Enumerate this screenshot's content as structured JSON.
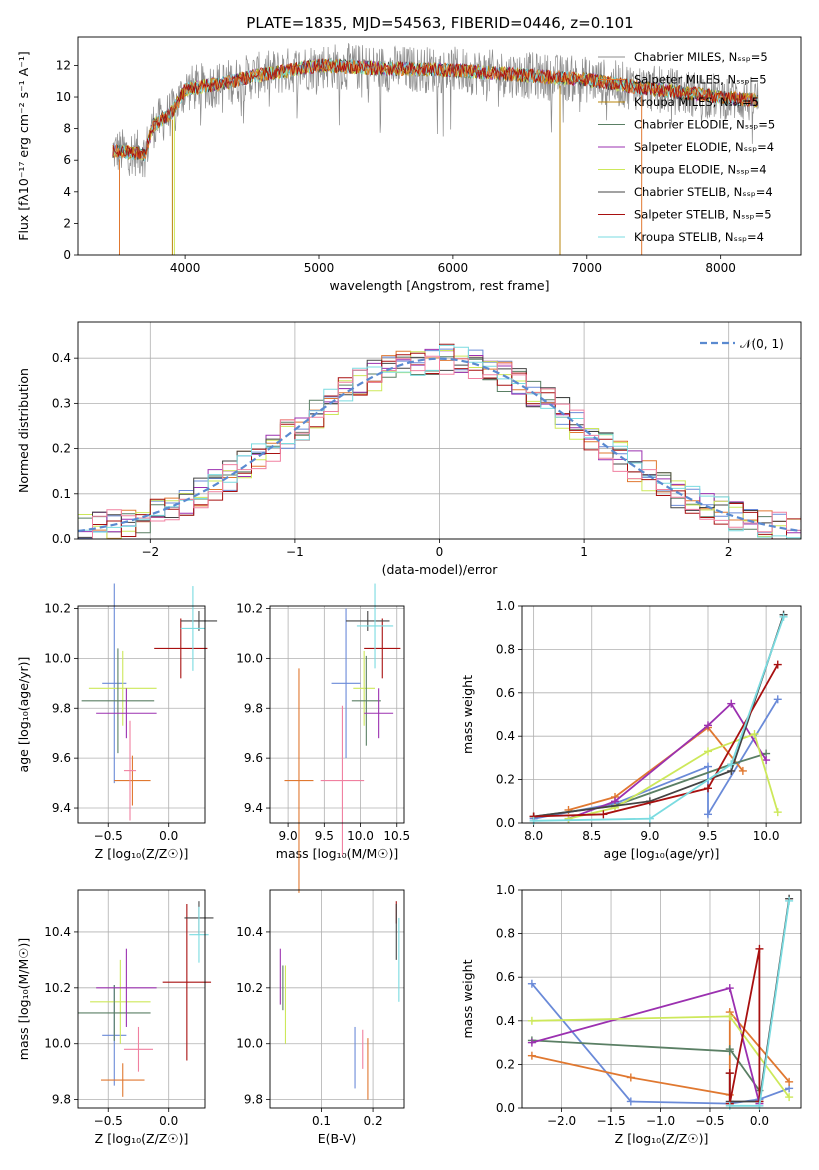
{
  "title": "PLATE=1835, MJD=54563, FIBERID=0446, z=0.101",
  "colors": [
    "#8c8c8c",
    "#6a8ad8",
    "#b8860b",
    "#5a7f64",
    "#9b30b0",
    "#cde85a",
    "#444444",
    "#a81010",
    "#7adbe0",
    "#e07830",
    "#f080a0"
  ],
  "chart_data": [
    {
      "id": "spectrum",
      "type": "line",
      "title": "PLATE=1835, MJD=54563, FIBERID=0446, z=0.101",
      "xlabel": "wavelength [Angstrom, rest frame]",
      "ylabel": "Flux [fλ10⁻¹⁷ erg cm⁻² s⁻¹ A⁻¹]",
      "xlim": [
        3200,
        8600
      ],
      "ylim": [
        0,
        13.8
      ],
      "xticks": [
        4000,
        5000,
        6000,
        7000,
        8000
      ],
      "yticks": [
        0,
        2,
        4,
        6,
        8,
        10,
        12
      ],
      "grid": false,
      "legend": "right",
      "continuum": {
        "x": [
          3450,
          3700,
          3760,
          3900,
          4000,
          4300,
          4500,
          5000,
          5500,
          6000,
          6500,
          7000,
          7400,
          8000,
          8600
        ],
        "y": [
          6.6,
          6.4,
          8.2,
          9.0,
          10.5,
          10.9,
          11.3,
          12.0,
          11.8,
          11.7,
          11.4,
          11.1,
          10.6,
          10.0,
          9.5
        ]
      },
      "series": [
        {
          "name": "Chabrier MILES, Nₛₛₚ=5",
          "color": "#8c8c8c"
        },
        {
          "name": "Salpeter MILES, Nₛₛₚ=5",
          "color": "#e07830"
        },
        {
          "name": "Kroupa MILES, Nₛₛₚ=5",
          "color": "#b8860b"
        },
        {
          "name": "Chabrier ELODIE, Nₛₛₚ=5",
          "color": "#5a7f64"
        },
        {
          "name": "Salpeter ELODIE, Nₛₛₚ=4",
          "color": "#9b30b0"
        },
        {
          "name": "Kroupa ELODIE, Nₛₛₚ=4",
          "color": "#cde85a"
        },
        {
          "name": "Chabrier STELIB, Nₛₛₚ=4",
          "color": "#444444"
        },
        {
          "name": "Salpeter STELIB, Nₛₛₚ=5",
          "color": "#a81010"
        },
        {
          "name": "Kroupa STELIB, Nₛₛₚ=4",
          "color": "#7adbe0"
        }
      ]
    },
    {
      "id": "residuals",
      "type": "bar",
      "xlabel": "(data-model)/error",
      "ylabel": "Normed distribution",
      "xlim": [
        -2.5,
        2.5
      ],
      "ylim": [
        0,
        0.48
      ],
      "xticks": [
        -2,
        -1,
        0,
        1,
        2
      ],
      "yticks": [
        0.0,
        0.1,
        0.2,
        0.3,
        0.4
      ],
      "grid": true,
      "legend": "top-right",
      "legend_label": "𝒩(0, 1)",
      "bin_width": 0.1,
      "series_colors": [
        "#6a8ad8",
        "#e07830",
        "#5a7f64",
        "#9b30b0",
        "#cde85a",
        "#444444",
        "#a81010",
        "#7adbe0",
        "#f080a0"
      ]
    },
    {
      "id": "age-vs-Z",
      "type": "scatter",
      "xlabel": "Z [log₁₀(Z/Z☉)]",
      "ylabel": "age  [log₁₀(age/yr)]",
      "xlim": [
        -0.75,
        0.3
      ],
      "ylim": [
        9.34,
        10.21
      ],
      "xticks": [
        -0.5,
        0.0
      ],
      "yticks": [
        9.4,
        9.6,
        9.8,
        10.0,
        10.2
      ],
      "grid": true,
      "points": [
        {
          "x": -0.45,
          "y": 9.9,
          "xerr": 0.1,
          "yerr": 0.4,
          "color": "#6a8ad8"
        },
        {
          "x": -0.3,
          "y": 9.51,
          "xerr": 0.15,
          "yerr": 0.1,
          "color": "#e07830"
        },
        {
          "x": -0.38,
          "y": 9.88,
          "xerr": 0.28,
          "yerr": 0.15,
          "color": "#cde85a"
        },
        {
          "x": -0.42,
          "y": 9.83,
          "xerr": 0.3,
          "yerr": 0.21,
          "color": "#5a7f64"
        },
        {
          "x": -0.35,
          "y": 9.78,
          "xerr": 0.25,
          "yerr": 0.1,
          "color": "#9b30b0"
        },
        {
          "x": 0.1,
          "y": 10.04,
          "xerr": 0.22,
          "yerr": 0.12,
          "color": "#a81010"
        },
        {
          "x": 0.25,
          "y": 10.15,
          "xerr": 0.15,
          "yerr": 0.04,
          "color": "#444444"
        },
        {
          "x": 0.2,
          "y": 10.12,
          "xerr": 0.1,
          "yerr": 0.17,
          "color": "#7adbe0"
        },
        {
          "x": -0.32,
          "y": 9.55,
          "xerr": 0.05,
          "yerr": 0.2,
          "color": "#f080a0"
        }
      ]
    },
    {
      "id": "age-vs-mass",
      "type": "scatter",
      "xlabel": "mass [log₁₀(M/M☉)]",
      "xlim": [
        8.75,
        10.6
      ],
      "ylim": [
        9.34,
        10.21
      ],
      "xticks": [
        9.0,
        9.5,
        10.0,
        10.5
      ],
      "yticks": [
        9.4,
        9.6,
        9.8,
        10.0,
        10.2
      ],
      "grid": true,
      "points": [
        {
          "x": 9.8,
          "y": 9.9,
          "xerr": 0.2,
          "yerr": 0.3,
          "color": "#6a8ad8"
        },
        {
          "x": 9.15,
          "y": 9.51,
          "xerr": 0.2,
          "yerr": 0.45,
          "color": "#e07830"
        },
        {
          "x": 10.05,
          "y": 9.88,
          "xerr": 0.15,
          "yerr": 0.15,
          "color": "#cde85a"
        },
        {
          "x": 10.08,
          "y": 9.83,
          "xerr": 0.2,
          "yerr": 0.18,
          "color": "#5a7f64"
        },
        {
          "x": 10.25,
          "y": 9.78,
          "xerr": 0.2,
          "yerr": 0.1,
          "color": "#9b30b0"
        },
        {
          "x": 10.3,
          "y": 10.04,
          "xerr": 0.25,
          "yerr": 0.12,
          "color": "#a81010"
        },
        {
          "x": 10.1,
          "y": 10.15,
          "xerr": 0.3,
          "yerr": 0.04,
          "color": "#444444"
        },
        {
          "x": 10.2,
          "y": 10.13,
          "xerr": 0.25,
          "yerr": 0.17,
          "color": "#7adbe0"
        },
        {
          "x": 9.75,
          "y": 9.51,
          "xerr": 0.3,
          "yerr": 0.3,
          "color": "#f080a0"
        }
      ]
    },
    {
      "id": "massweight-vs-age",
      "type": "line",
      "xlabel": "age  [log₁₀(age/yr)]",
      "ylabel": "mass weight",
      "xlim": [
        7.9,
        10.3
      ],
      "ylim": [
        0,
        1
      ],
      "xticks": [
        8.0,
        8.5,
        9.0,
        9.5,
        10.0
      ],
      "yticks": [
        0.0,
        0.2,
        0.4,
        0.6,
        0.8,
        1.0
      ],
      "grid": true,
      "series": [
        {
          "color": "#6a8ad8",
          "x": [
            8.0,
            8.7,
            9.5,
            9.5,
            10.1
          ],
          "y": [
            0.02,
            0.09,
            0.26,
            0.04,
            0.57
          ]
        },
        {
          "color": "#e07830",
          "x": [
            8.3,
            8.7,
            9.5,
            9.8
          ],
          "y": [
            0.06,
            0.12,
            0.44,
            0.24
          ]
        },
        {
          "color": "#5a7f64",
          "x": [
            8.0,
            8.7,
            9.7,
            10.0
          ],
          "y": [
            0.03,
            0.08,
            0.27,
            0.32
          ]
        },
        {
          "color": "#9b30b0",
          "x": [
            8.3,
            8.7,
            9.5,
            9.7,
            10.0
          ],
          "y": [
            0.02,
            0.1,
            0.45,
            0.55,
            0.29
          ]
        },
        {
          "color": "#cde85a",
          "x": [
            8.3,
            8.7,
            9.5,
            9.9,
            10.1
          ],
          "y": [
            0.02,
            0.07,
            0.33,
            0.41,
            0.05
          ]
        },
        {
          "color": "#444444",
          "x": [
            8.0,
            9.0,
            9.7,
            10.15
          ],
          "y": [
            0.03,
            0.1,
            0.24,
            0.96
          ]
        },
        {
          "color": "#a81010",
          "x": [
            8.0,
            8.6,
            9.5,
            10.1
          ],
          "y": [
            0.03,
            0.04,
            0.16,
            0.73
          ]
        },
        {
          "color": "#7adbe0",
          "x": [
            8.0,
            9.0,
            9.7,
            10.15
          ],
          "y": [
            0.01,
            0.02,
            0.27,
            0.95
          ]
        }
      ]
    },
    {
      "id": "mass-vs-Z",
      "type": "scatter",
      "xlabel": "Z [log₁₀(Z/Z☉)]",
      "ylabel": "mass [log₁₀(M/M☉)]",
      "xlim": [
        -0.75,
        0.3
      ],
      "ylim": [
        9.77,
        10.55
      ],
      "xticks": [
        -0.5,
        0.0
      ],
      "yticks": [
        9.8,
        10.0,
        10.2,
        10.4
      ],
      "grid": true,
      "points": [
        {
          "x": -0.45,
          "y": 10.03,
          "xerr": 0.1,
          "yerr": 0.18,
          "color": "#6a8ad8"
        },
        {
          "x": -0.38,
          "y": 9.87,
          "xerr": 0.18,
          "yerr": 0.06,
          "color": "#e07830"
        },
        {
          "x": -0.4,
          "y": 10.15,
          "xerr": 0.25,
          "yerr": 0.15,
          "color": "#cde85a"
        },
        {
          "x": -0.45,
          "y": 10.11,
          "xerr": 0.3,
          "yerr": 0.1,
          "color": "#5a7f64"
        },
        {
          "x": -0.35,
          "y": 10.2,
          "xerr": 0.25,
          "yerr": 0.14,
          "color": "#9b30b0"
        },
        {
          "x": 0.15,
          "y": 10.22,
          "xerr": 0.2,
          "yerr": 0.28,
          "color": "#a81010"
        },
        {
          "x": 0.25,
          "y": 10.45,
          "xerr": 0.12,
          "yerr": 0.06,
          "color": "#444444"
        },
        {
          "x": 0.25,
          "y": 10.39,
          "xerr": 0.08,
          "yerr": 0.1,
          "color": "#7adbe0"
        },
        {
          "x": -0.25,
          "y": 9.98,
          "xerr": 0.12,
          "yerr": 0.08,
          "color": "#f080a0"
        }
      ]
    },
    {
      "id": "mass-vs-EBV",
      "type": "scatter",
      "xlabel": "E(B-V)",
      "xlim": [
        0.0,
        0.26
      ],
      "ylim": [
        9.77,
        10.55
      ],
      "xticks": [
        0.1,
        0.2
      ],
      "yticks": [
        9.8,
        10.0,
        10.2,
        10.4
      ],
      "grid": true,
      "points": [
        {
          "x": 0.165,
          "y": 9.95,
          "yerr": 0.11,
          "color": "#6a8ad8"
        },
        {
          "x": 0.19,
          "y": 9.91,
          "yerr": 0.11,
          "color": "#e07830"
        },
        {
          "x": 0.03,
          "y": 10.14,
          "yerr": 0.14,
          "color": "#cde85a"
        },
        {
          "x": 0.025,
          "y": 10.2,
          "yerr": 0.08,
          "color": "#5a7f64"
        },
        {
          "x": 0.02,
          "y": 10.24,
          "yerr": 0.1,
          "color": "#9b30b0"
        },
        {
          "x": 0.245,
          "y": 10.47,
          "yerr": 0.04,
          "color": "#a81010"
        },
        {
          "x": 0.245,
          "y": 10.4,
          "yerr": 0.1,
          "color": "#444444"
        },
        {
          "x": 0.25,
          "y": 10.3,
          "yerr": 0.15,
          "color": "#7adbe0"
        },
        {
          "x": 0.18,
          "y": 9.98,
          "yerr": 0.07,
          "color": "#f080a0"
        }
      ]
    },
    {
      "id": "massweight-vs-Z",
      "type": "line",
      "xlabel": "Z [log₁₀(Z/Z☉)]",
      "ylabel": "mass weight",
      "xlim": [
        -2.4,
        0.42
      ],
      "ylim": [
        0,
        1
      ],
      "xticks": [
        -2.0,
        -1.5,
        -1.0,
        -0.5,
        0.0
      ],
      "yticks": [
        0.0,
        0.2,
        0.4,
        0.6,
        0.8,
        1.0
      ],
      "grid": true,
      "series": [
        {
          "color": "#6a8ad8",
          "x": [
            -2.3,
            -1.3,
            -0.3,
            0.0,
            0.3
          ],
          "y": [
            0.57,
            0.03,
            0.02,
            0.04,
            0.09
          ]
        },
        {
          "color": "#e07830",
          "x": [
            -2.3,
            -1.3,
            -0.3,
            -0.3,
            0.3
          ],
          "y": [
            0.24,
            0.14,
            0.06,
            0.44,
            0.12
          ]
        },
        {
          "color": "#5a7f64",
          "x": [
            -2.3,
            -0.3,
            -0.3,
            0.0
          ],
          "y": [
            0.31,
            0.26,
            0.27,
            0.08
          ]
        },
        {
          "color": "#9b30b0",
          "x": [
            -2.3,
            -0.3,
            0.0
          ],
          "y": [
            0.3,
            0.55,
            0.02
          ]
        },
        {
          "color": "#cde85a",
          "x": [
            -2.3,
            -0.3,
            0.3
          ],
          "y": [
            0.4,
            0.42,
            0.05
          ]
        },
        {
          "color": "#444444",
          "x": [
            -0.3,
            -0.3,
            0.0,
            0.3
          ],
          "y": [
            0.16,
            0.03,
            0.03,
            0.96
          ]
        },
        {
          "color": "#a81010",
          "x": [
            -0.3,
            -0.3,
            0.0,
            0.0
          ],
          "y": [
            0.16,
            0.02,
            0.73,
            0.03
          ]
        },
        {
          "color": "#7adbe0",
          "x": [
            -0.3,
            0.0,
            0.3
          ],
          "y": [
            0.01,
            0.01,
            0.95
          ]
        }
      ]
    }
  ]
}
